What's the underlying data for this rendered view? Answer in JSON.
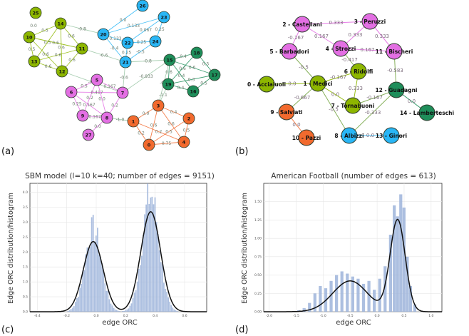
{
  "panels": {
    "a": {
      "label": "(a)",
      "nodes": [
        {
          "id": "25",
          "color": "#8DB600"
        },
        {
          "id": "10",
          "color": "#8DB600"
        },
        {
          "id": "14",
          "color": "#8DB600"
        },
        {
          "id": "11",
          "color": "#8DB600"
        },
        {
          "id": "13",
          "color": "#8DB600"
        },
        {
          "id": "12",
          "color": "#8DB600"
        },
        {
          "id": "26",
          "color": "#29B6F6"
        },
        {
          "id": "23",
          "color": "#29B6F6"
        },
        {
          "id": "20",
          "color": "#29B6F6"
        },
        {
          "id": "22",
          "color": "#29B6F6"
        },
        {
          "id": "24",
          "color": "#29B6F6"
        },
        {
          "id": "21",
          "color": "#29B6F6"
        },
        {
          "id": "15",
          "color": "#1E8E5A"
        },
        {
          "id": "18",
          "color": "#1E8E5A"
        },
        {
          "id": "17",
          "color": "#1E8E5A"
        },
        {
          "id": "19",
          "color": "#1E8E5A"
        },
        {
          "id": "16",
          "color": "#1E8E5A"
        },
        {
          "id": "5",
          "color": "#E36FE3"
        },
        {
          "id": "6",
          "color": "#E36FE3"
        },
        {
          "id": "7",
          "color": "#E36FE3"
        },
        {
          "id": "9",
          "color": "#E36FE3"
        },
        {
          "id": "8",
          "color": "#E36FE3"
        },
        {
          "id": "27",
          "color": "#E36FE3"
        },
        {
          "id": "3",
          "color": "#F26A2E"
        },
        {
          "id": "2",
          "color": "#F26A2E"
        },
        {
          "id": "1",
          "color": "#F26A2E"
        },
        {
          "id": "0",
          "color": "#F26A2E"
        },
        {
          "id": "4",
          "color": "#F26A2E"
        }
      ],
      "edges": [
        {
          "s": "10",
          "t": "14",
          "w": "0.5"
        },
        {
          "s": "10",
          "t": "11",
          "w": "0.6"
        },
        {
          "s": "10",
          "t": "13",
          "w": "0.5"
        },
        {
          "s": "10",
          "t": "12",
          "w": "0.6"
        },
        {
          "s": "14",
          "t": "11",
          "w": "0.6"
        },
        {
          "s": "14",
          "t": "13",
          "w": "0.5"
        },
        {
          "s": "14",
          "t": "12",
          "w": "0.6"
        },
        {
          "s": "11",
          "t": "13",
          "w": "0.6"
        },
        {
          "s": "11",
          "t": "12",
          "w": "0.6"
        },
        {
          "s": "13",
          "t": "12",
          "w": "0.6"
        },
        {
          "s": "14",
          "t": "20",
          "w": "-0.8"
        },
        {
          "s": "11",
          "t": "21",
          "w": "-0.6"
        },
        {
          "s": "20",
          "t": "26",
          "w": "0.0"
        },
        {
          "s": "20",
          "t": "23",
          "w": "0.133"
        },
        {
          "s": "20",
          "t": "22",
          "w": "0.133"
        },
        {
          "s": "20",
          "t": "21",
          "w": "-0.4"
        },
        {
          "s": "23",
          "t": "24",
          "w": "0.25"
        },
        {
          "s": "23",
          "t": "22",
          "w": "0.067"
        },
        {
          "s": "22",
          "t": "24",
          "w": "0.25"
        },
        {
          "s": "22",
          "t": "21",
          "w": "0.25"
        },
        {
          "s": "24",
          "t": "21",
          "w": "-0.5"
        },
        {
          "s": "21",
          "t": "15",
          "w": "-0.8"
        },
        {
          "s": "21",
          "t": "7",
          "w": "-0.6"
        },
        {
          "s": "15",
          "t": "18",
          "w": "0.4"
        },
        {
          "s": "15",
          "t": "19",
          "w": "0.6"
        },
        {
          "s": "15",
          "t": "16",
          "w": "0.4"
        },
        {
          "s": "15",
          "t": "17",
          "w": "0.6"
        },
        {
          "s": "18",
          "t": "17",
          "w": "0.5"
        },
        {
          "s": "19",
          "t": "16",
          "w": "0.4"
        },
        {
          "s": "19",
          "t": "17",
          "w": "0.3"
        },
        {
          "s": "16",
          "t": "17",
          "w": "0.5"
        },
        {
          "s": "18",
          "t": "19",
          "w": "0.6"
        },
        {
          "s": "15",
          "t": "7",
          "w": "-0.933"
        },
        {
          "s": "15",
          "t": "3",
          "w": "-0.9"
        },
        {
          "s": "19",
          "t": "3",
          "w": "-1.1"
        },
        {
          "s": "12",
          "t": "7",
          "w": "-0.9"
        },
        {
          "s": "5",
          "t": "6",
          "w": "0.5"
        },
        {
          "s": "5",
          "t": "7",
          "w": "0.167"
        },
        {
          "s": "5",
          "t": "9",
          "w": "0.2"
        },
        {
          "s": "5",
          "t": "8",
          "w": "0.0"
        },
        {
          "s": "6",
          "t": "7",
          "w": "0.417"
        },
        {
          "s": "6",
          "t": "9",
          "w": "0.25"
        },
        {
          "s": "6",
          "t": "8",
          "w": "0.167"
        },
        {
          "s": "9",
          "t": "8",
          "w": "0.167"
        },
        {
          "s": "7",
          "t": "8",
          "w": "0.2"
        },
        {
          "s": "8",
          "t": "27",
          "w": "0.0"
        },
        {
          "s": "8",
          "t": "1",
          "w": "-1.0"
        },
        {
          "s": "3",
          "t": "1",
          "w": "0.0"
        },
        {
          "s": "3",
          "t": "2",
          "w": "0.4"
        },
        {
          "s": "3",
          "t": "0",
          "w": "0.6"
        },
        {
          "s": "3",
          "t": "4",
          "w": "0.6"
        },
        {
          "s": "1",
          "t": "0",
          "w": "0.2"
        },
        {
          "s": "1",
          "t": "4",
          "w": "0.2"
        },
        {
          "s": "2",
          "t": "4",
          "w": "0.5"
        },
        {
          "s": "0",
          "t": "4",
          "w": "0.75"
        },
        {
          "s": "2",
          "t": "0",
          "w": "0.5"
        }
      ],
      "extra_labels": [
        {
          "text": "0.0"
        }
      ]
    },
    "b": {
      "label": "(b)",
      "nodes": [
        {
          "id": "castellani",
          "label": "2 - Castellani",
          "color": "#E36FE3"
        },
        {
          "id": "peruzzi",
          "label": "3 - Peruzzi",
          "color": "#E36FE3"
        },
        {
          "id": "strozzi",
          "label": "4 - Strozzi",
          "color": "#E36FE3"
        },
        {
          "id": "barbadori",
          "label": "5 - Barbadori",
          "color": "#E36FE3"
        },
        {
          "id": "bischeri",
          "label": "11 - Bischeri",
          "color": "#E36FE3"
        },
        {
          "id": "acciaiuoli",
          "label": "0 - Acciaiuoli",
          "color": "#8DB600"
        },
        {
          "id": "medici",
          "label": "1 - Medici",
          "color": "#8DB600"
        },
        {
          "id": "ridolfi",
          "label": "6 - Ridolfi",
          "color": "#8DB600"
        },
        {
          "id": "tornabuoni",
          "label": "7 - Tornabuoni",
          "color": "#8DB600"
        },
        {
          "id": "salviati",
          "label": "9 - Salviati",
          "color": "#F26A2E"
        },
        {
          "id": "pazzi",
          "label": "10 - Pazzi",
          "color": "#F26A2E"
        },
        {
          "id": "guadagni",
          "label": "12 - Guadagni",
          "color": "#1E8E5A"
        },
        {
          "id": "lamberteschi",
          "label": "14 - Lamberteschi",
          "color": "#1E8E5A"
        },
        {
          "id": "albizzi",
          "label": "8 - Albizzi",
          "color": "#29B6F6"
        },
        {
          "id": "ginori",
          "label": "13 - Ginori",
          "color": "#29B6F6"
        }
      ],
      "edges": [
        {
          "s": "castellani",
          "t": "peruzzi",
          "w": "0.333"
        },
        {
          "s": "castellani",
          "t": "strozzi",
          "w": "0.167"
        },
        {
          "s": "castellani",
          "t": "barbadori",
          "w": "-0.167"
        },
        {
          "s": "peruzzi",
          "t": "strozzi",
          "w": "0.333"
        },
        {
          "s": "peruzzi",
          "t": "bischeri",
          "w": "0.333"
        },
        {
          "s": "strozzi",
          "t": "bischeri",
          "w": "0.167"
        },
        {
          "s": "strozzi",
          "t": "ridolfi",
          "w": "-0.417"
        },
        {
          "s": "barbadori",
          "t": "medici",
          "w": "-0.5"
        },
        {
          "s": "bischeri",
          "t": "guadagni",
          "w": "-0.583"
        },
        {
          "s": "acciaiuoli",
          "t": "medici",
          "w": "0.0"
        },
        {
          "s": "medici",
          "t": "ridolfi",
          "w": "-0.167"
        },
        {
          "s": "medici",
          "t": "tornabuoni",
          "w": "0.0"
        },
        {
          "s": "medici",
          "t": "salviati",
          "w": "-0.667"
        },
        {
          "s": "medici",
          "t": "albizzi",
          "w": "-0.5"
        },
        {
          "s": "ridolfi",
          "t": "tornabuoni",
          "w": "0.333"
        },
        {
          "s": "tornabuoni",
          "t": "guadagni",
          "w": "-0.167"
        },
        {
          "s": "guadagni",
          "t": "albizzi",
          "w": "-0.333"
        },
        {
          "s": "guadagni",
          "t": "lamberteschi",
          "w": "0.0"
        },
        {
          "s": "salviati",
          "t": "pazzi",
          "w": "0.0"
        },
        {
          "s": "albizzi",
          "t": "ginori",
          "w": "0.0"
        }
      ]
    },
    "c": {
      "label": "(c)",
      "title": "SBM model (l=10 k=40; number of edges = 9151)",
      "xlabel": "edge ORC",
      "ylabel": "Edge ORC distribution/histogram"
    },
    "d": {
      "label": "(d)",
      "title": "American Football (number of edges = 613)",
      "xlabel": "edge ORC",
      "ylabel": "Edge ORC distribution/histogram"
    }
  },
  "chart_data": [
    {
      "type": "bar",
      "title": "SBM model (l=10 k=40; number of edges = 9151)",
      "xlabel": "edge ORC",
      "ylabel": "Edge ORC distribution/histogram",
      "xlim": [
        -0.45,
        0.75
      ],
      "ylim": [
        0,
        4.3
      ],
      "x_ticks": [
        "-0.4",
        "-0.2",
        "0.0",
        "0.2",
        "0.4",
        "0.6"
      ],
      "y_ticks": [
        "0.0",
        "0.5",
        "1.0",
        "1.5",
        "2.0",
        "2.5",
        "3.0",
        "3.5",
        "4.0"
      ],
      "bar_color": "#9DB4DA",
      "curve_color": "#111111",
      "grid": true,
      "density_peaks": [
        {
          "x": -0.02,
          "y": 2.35,
          "sd": 0.067
        },
        {
          "x": 0.37,
          "y": 3.35,
          "sd": 0.067
        }
      ],
      "histogram_peaks": [
        {
          "x": -0.02,
          "y": 2.9
        },
        {
          "x": 0.37,
          "y": 4.1
        }
      ]
    },
    {
      "type": "bar",
      "title": "American Football (number of edges = 613)",
      "xlabel": "edge ORC",
      "ylabel": "Edge ORC distribution/histogram",
      "xlim": [
        -2.1,
        1.2
      ],
      "ylim": [
        0,
        1.75
      ],
      "x_ticks": [
        "-2.0",
        "-1.5",
        "-1.0",
        "-0.5",
        "0.0",
        "0.5",
        "1.0"
      ],
      "y_ticks": [
        "0.00",
        "0.25",
        "0.50",
        "0.75",
        "1.00",
        "1.25",
        "1.50"
      ],
      "bar_color": "#9DB4DA",
      "curve_color": "#111111",
      "grid": true,
      "density_peaks": [
        {
          "x": -0.5,
          "y": 0.42,
          "sd": 0.32
        },
        {
          "x": 0.38,
          "y": 1.25,
          "sd": 0.14
        }
      ],
      "histogram_bars": [
        {
          "x": -1.45,
          "h": 0.02
        },
        {
          "x": -1.35,
          "h": 0.05
        },
        {
          "x": -1.25,
          "h": 0.12
        },
        {
          "x": -1.15,
          "h": 0.25
        },
        {
          "x": -1.05,
          "h": 0.35
        },
        {
          "x": -0.95,
          "h": 0.32
        },
        {
          "x": -0.85,
          "h": 0.42
        },
        {
          "x": -0.75,
          "h": 0.5
        },
        {
          "x": -0.65,
          "h": 0.55
        },
        {
          "x": -0.55,
          "h": 0.52
        },
        {
          "x": -0.45,
          "h": 0.48
        },
        {
          "x": -0.35,
          "h": 0.45
        },
        {
          "x": -0.25,
          "h": 0.38
        },
        {
          "x": -0.15,
          "h": 0.42
        },
        {
          "x": -0.05,
          "h": 0.3
        },
        {
          "x": 0.05,
          "h": 0.45
        },
        {
          "x": 0.15,
          "h": 0.62
        },
        {
          "x": 0.25,
          "h": 1.05
        },
        {
          "x": 0.32,
          "h": 1.45
        },
        {
          "x": 0.38,
          "h": 1.3
        },
        {
          "x": 0.44,
          "h": 1.6
        },
        {
          "x": 0.5,
          "h": 1.42
        },
        {
          "x": 0.56,
          "h": 0.75
        },
        {
          "x": 0.62,
          "h": 0.35
        },
        {
          "x": 0.7,
          "h": 0.1
        }
      ]
    }
  ]
}
